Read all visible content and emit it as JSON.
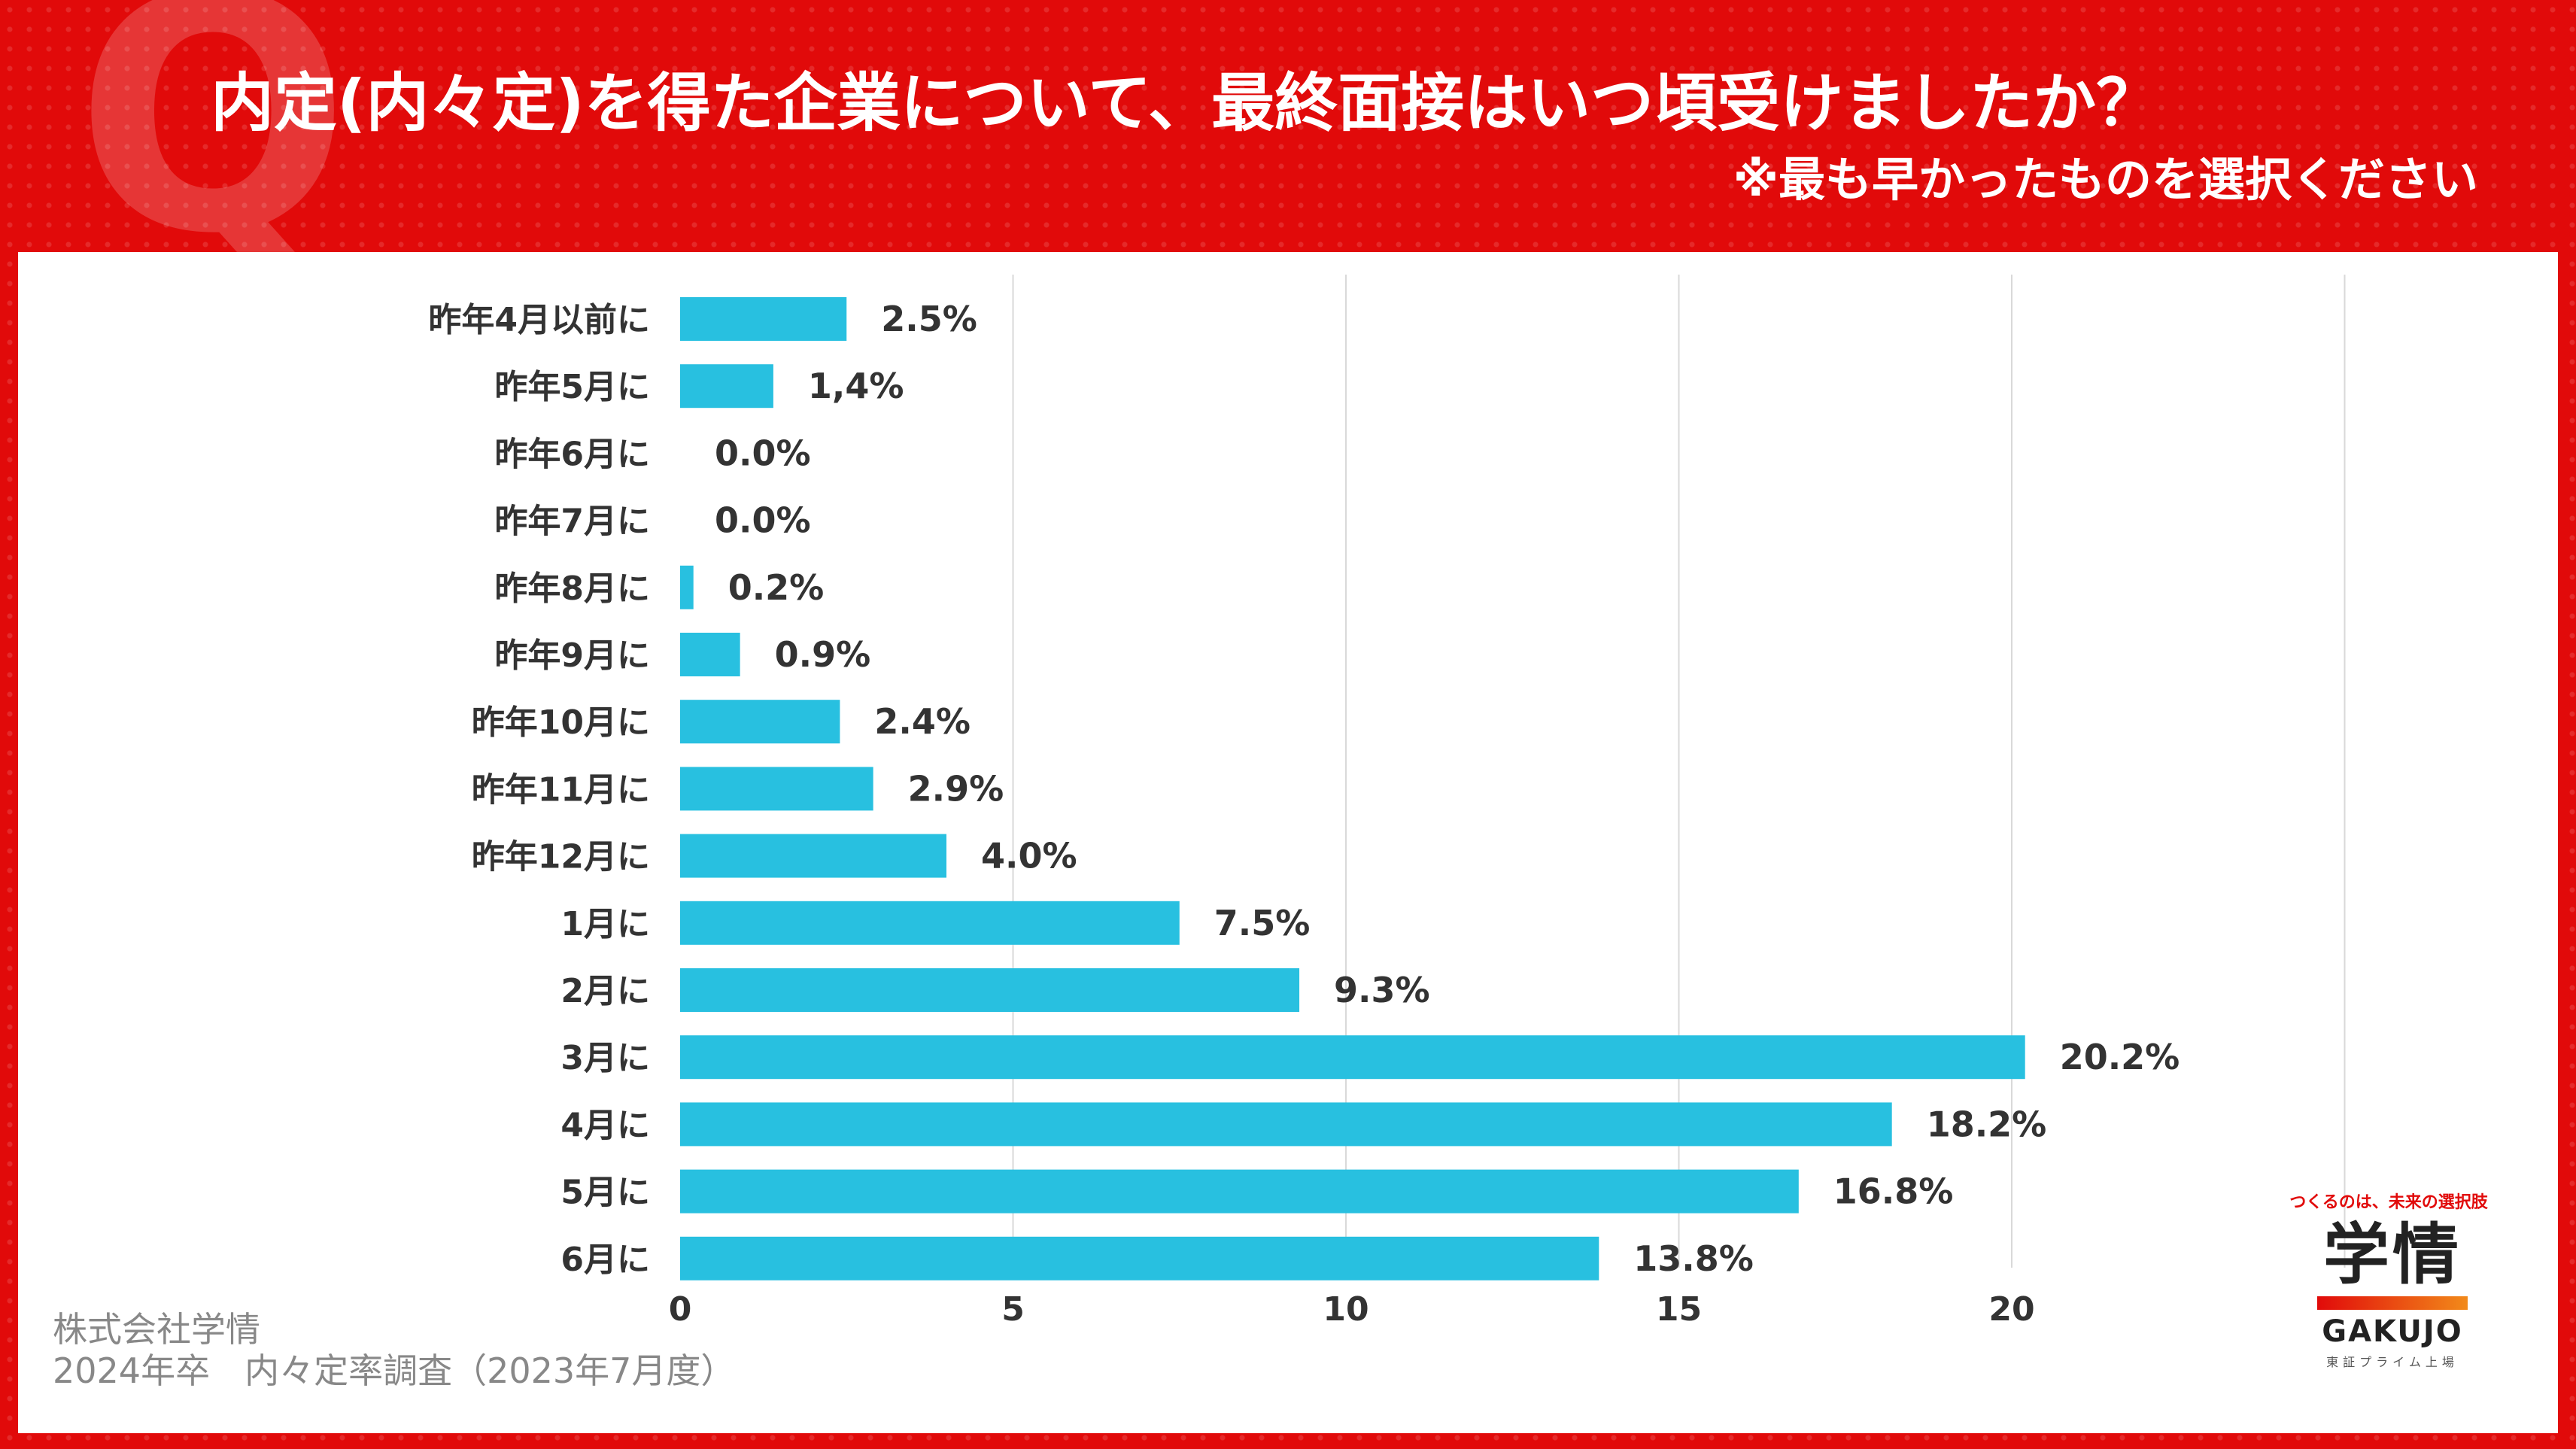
{
  "header": {
    "q_mark": "Q",
    "title": "内定(内々定)を得た企業について、最終面接はいつ頃受けましたか？",
    "subtitle": "※最も早かったものを選択ください"
  },
  "colors": {
    "bar": "#28c0e0",
    "background": "#e10a0a",
    "text": "#333333",
    "grid": "#d9d9d9"
  },
  "chart_data": {
    "type": "bar",
    "orientation": "horizontal",
    "title": "内定(内々定)を得た企業について、最終面接はいつ頃受けましたか？",
    "categories": [
      "昨年4月以前に",
      "昨年5月に",
      "昨年6月に",
      "昨年7月に",
      "昨年8月に",
      "昨年9月に",
      "昨年10月に",
      "昨年11月に",
      "昨年12月に",
      "1月に",
      "2月に",
      "3月に",
      "4月に",
      "5月に",
      "6月に"
    ],
    "values": [
      2.5,
      1.4,
      0.0,
      0.0,
      0.2,
      0.9,
      2.4,
      2.9,
      4.0,
      7.5,
      9.3,
      20.2,
      18.2,
      16.8,
      13.8
    ],
    "labels": [
      "2.5%",
      "1,4%",
      "0.0%",
      "0.0%",
      "0.2%",
      "0.9%",
      "2.4%",
      "2.9%",
      "4.0%",
      "7.5%",
      "9.3%",
      "20.2%",
      "18.2%",
      "16.8%",
      "13.8%"
    ],
    "xticks": [
      0,
      5,
      10,
      15,
      20
    ],
    "xlim": [
      0,
      25
    ],
    "xlabel": "",
    "ylabel": "",
    "grid": true
  },
  "footer": {
    "company": "株式会社学情",
    "survey": "2024年卒　内々定率調査（2023年7月度）"
  },
  "logo": {
    "tagline": "つくるのは、未来の選択肢",
    "name": "学情",
    "english": "GAKUJO",
    "listing": "東証プライム上場"
  }
}
